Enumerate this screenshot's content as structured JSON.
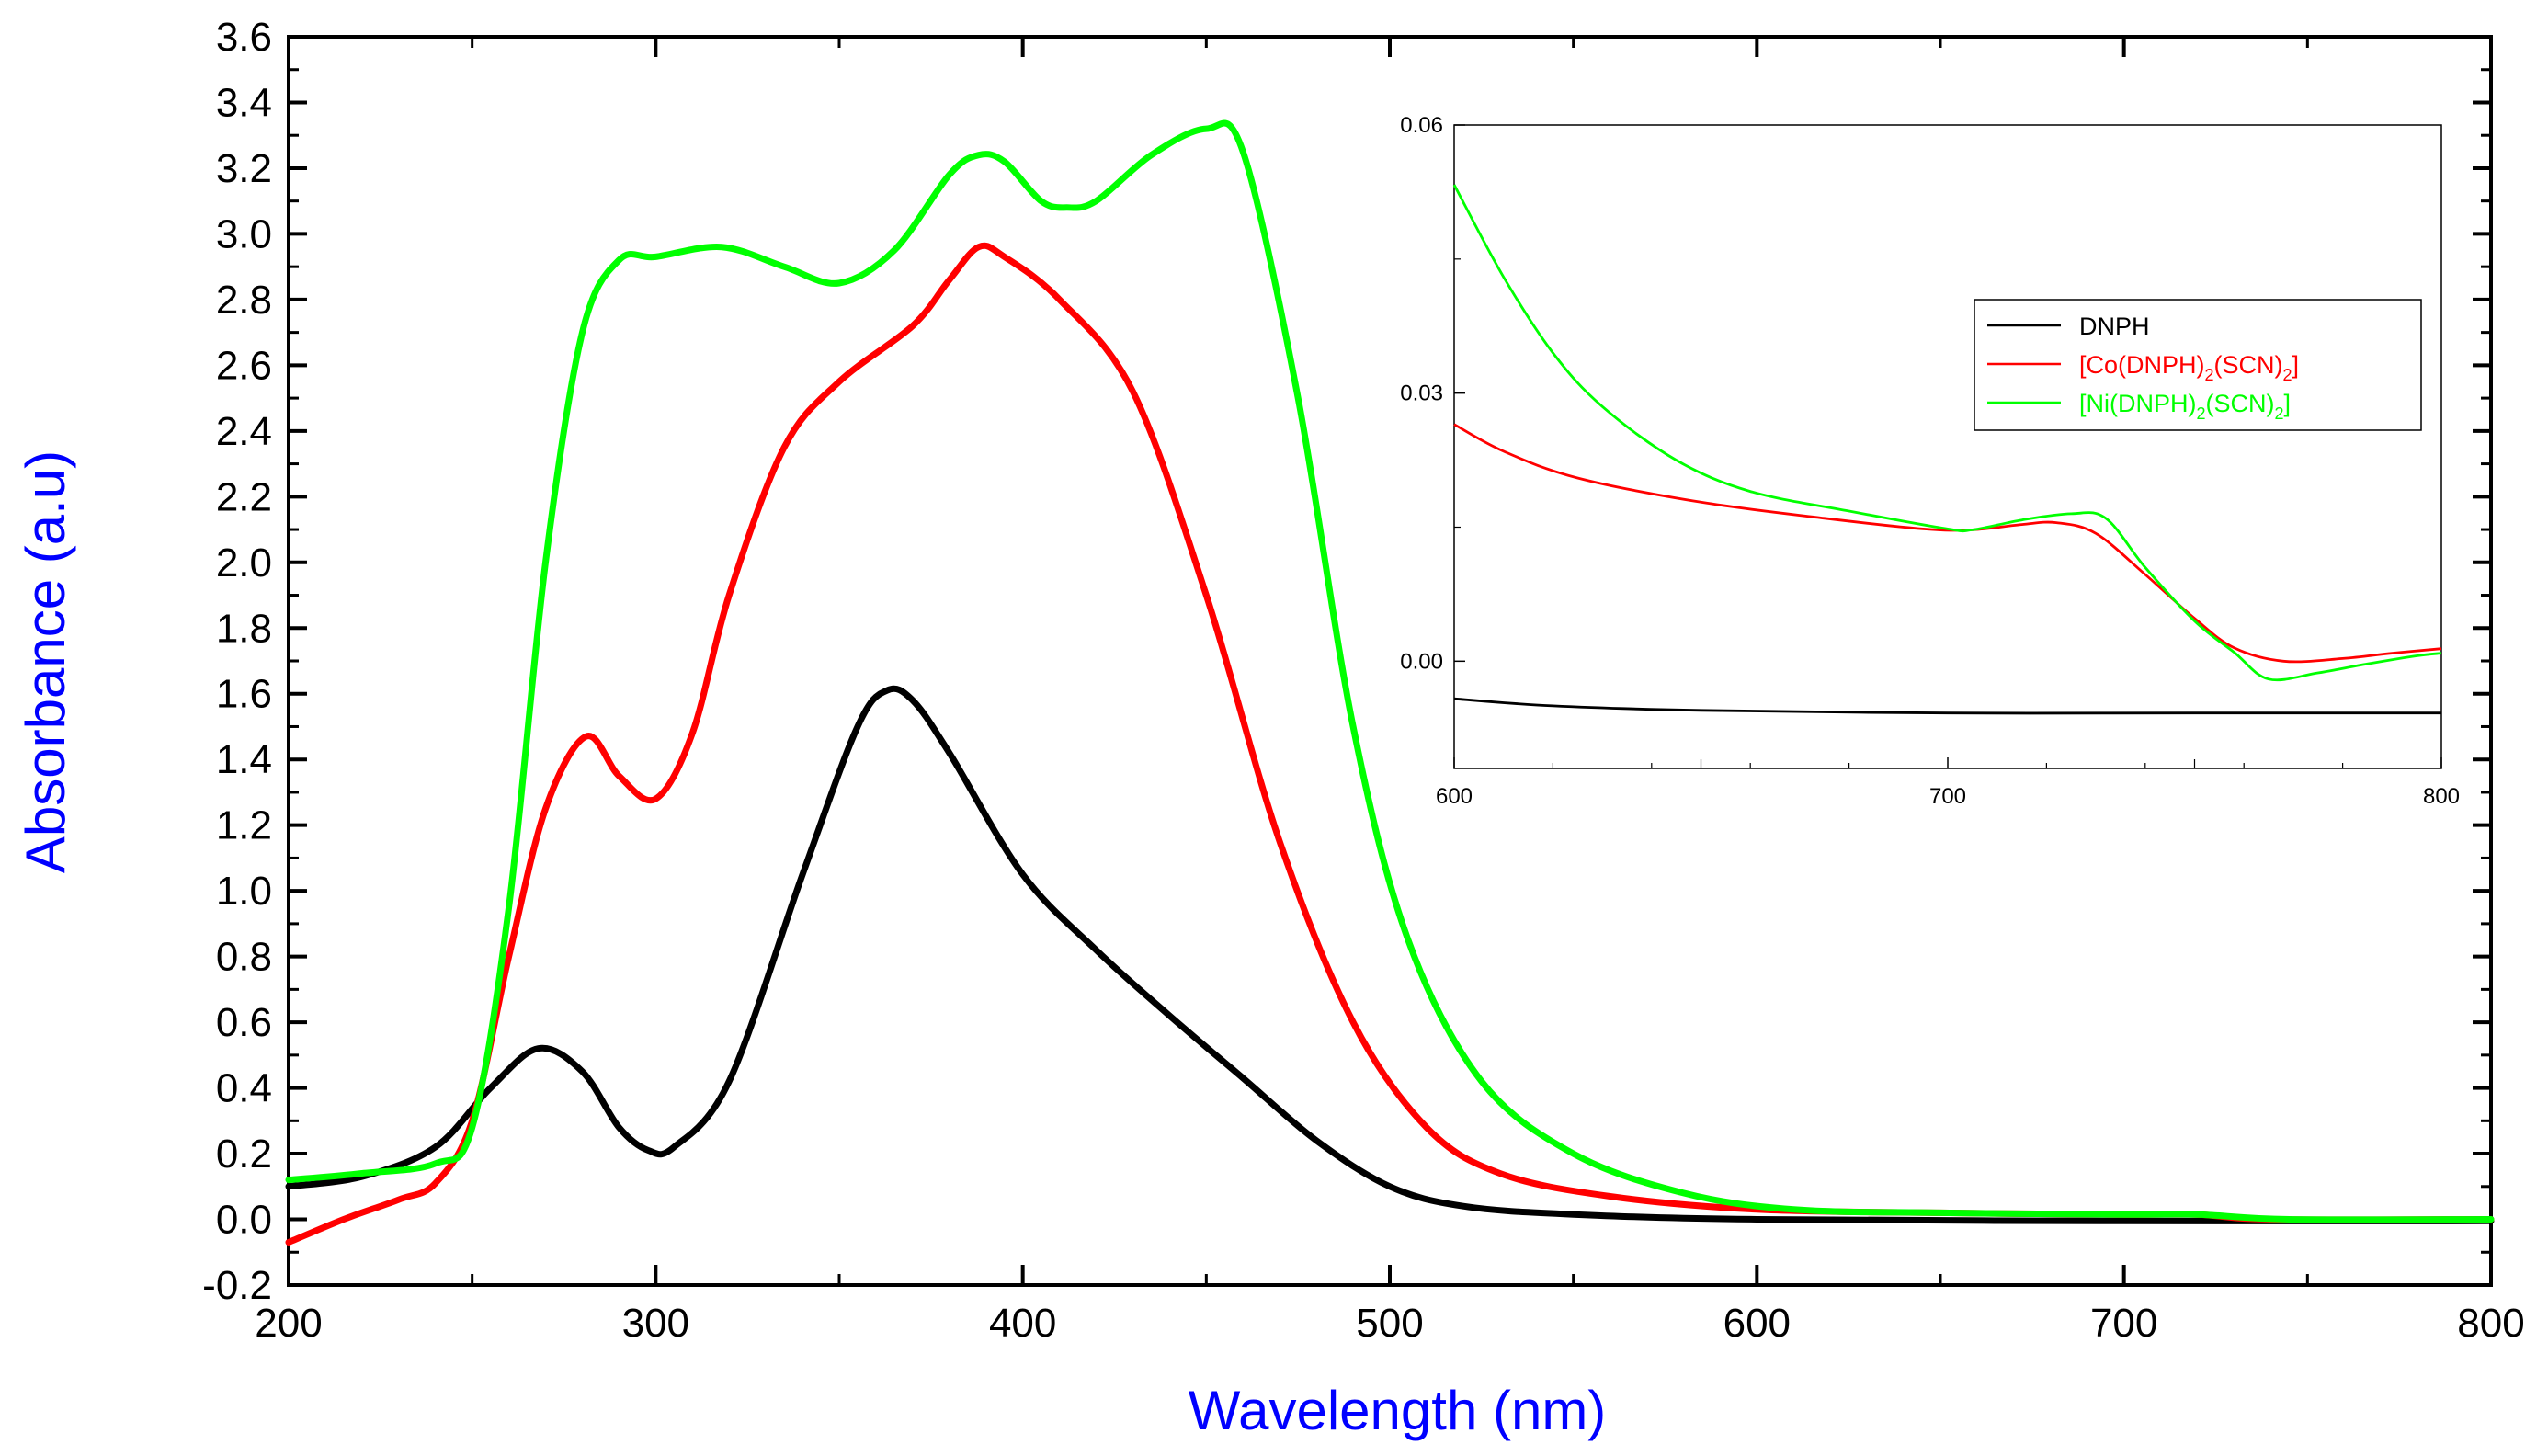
{
  "chart_data": [
    {
      "type": "line",
      "xlabel": "Wavelength (nm)",
      "ylabel": "Absorbance (a.u)",
      "xlim": [
        200,
        800
      ],
      "ylim": [
        -0.2,
        3.6
      ],
      "x_ticks": [
        "200",
        "300",
        "400",
        "500",
        "600",
        "700",
        "800"
      ],
      "y_ticks": [
        "-0.2",
        "0.0",
        "0.2",
        "0.4",
        "0.6",
        "0.8",
        "1.0",
        "1.2",
        "1.4",
        "1.6",
        "1.8",
        "2.0",
        "2.2",
        "2.4",
        "2.6",
        "2.8",
        "3.0",
        "3.2",
        "3.4",
        "3.6"
      ],
      "series": [
        {
          "name": "DNPH",
          "color": "#000000",
          "points": [
            [
              200,
              0.1
            ],
            [
              220,
              0.13
            ],
            [
              240,
              0.22
            ],
            [
              255,
              0.4
            ],
            [
              268,
              0.52
            ],
            [
              280,
              0.45
            ],
            [
              290,
              0.28
            ],
            [
              298,
              0.21
            ],
            [
              305,
              0.22
            ],
            [
              320,
              0.42
            ],
            [
              340,
              1.05
            ],
            [
              355,
              1.5
            ],
            [
              363,
              1.61
            ],
            [
              370,
              1.58
            ],
            [
              380,
              1.42
            ],
            [
              400,
              1.05
            ],
            [
              420,
              0.82
            ],
            [
              440,
              0.62
            ],
            [
              460,
              0.43
            ],
            [
              480,
              0.24
            ],
            [
              500,
              0.1
            ],
            [
              520,
              0.04
            ],
            [
              550,
              0.015
            ],
            [
              600,
              0.0
            ],
            [
              700,
              -0.005
            ],
            [
              800,
              -0.005
            ]
          ]
        },
        {
          "name": "[Co(DNPH)2(SCN)2]",
          "color": "#ff0000",
          "points": [
            [
              200,
              -0.07
            ],
            [
              215,
              0.0
            ],
            [
              230,
              0.06
            ],
            [
              240,
              0.11
            ],
            [
              250,
              0.3
            ],
            [
              260,
              0.8
            ],
            [
              270,
              1.25
            ],
            [
              281,
              1.47
            ],
            [
              290,
              1.35
            ],
            [
              300,
              1.28
            ],
            [
              310,
              1.48
            ],
            [
              320,
              1.9
            ],
            [
              335,
              2.35
            ],
            [
              350,
              2.55
            ],
            [
              370,
              2.72
            ],
            [
              380,
              2.86
            ],
            [
              388,
              2.96
            ],
            [
              395,
              2.93
            ],
            [
              410,
              2.8
            ],
            [
              430,
              2.52
            ],
            [
              450,
              1.9
            ],
            [
              470,
              1.15
            ],
            [
              490,
              0.6
            ],
            [
              510,
              0.28
            ],
            [
              530,
              0.14
            ],
            [
              560,
              0.07
            ],
            [
              600,
              0.03
            ],
            [
              650,
              0.02
            ],
            [
              700,
              0.015
            ],
            [
              720,
              0.015
            ],
            [
              740,
              0.0
            ],
            [
              800,
              0.0
            ]
          ]
        },
        {
          "name": "[Ni(DNPH)2(SCN)2]",
          "color": "#00ff00",
          "points": [
            [
              200,
              0.12
            ],
            [
              220,
              0.14
            ],
            [
              240,
              0.17
            ],
            [
              250,
              0.28
            ],
            [
              260,
              0.95
            ],
            [
              270,
              2.0
            ],
            [
              280,
              2.7
            ],
            [
              290,
              2.92
            ],
            [
              300,
              2.93
            ],
            [
              318,
              2.96
            ],
            [
              335,
              2.9
            ],
            [
              350,
              2.85
            ],
            [
              365,
              2.95
            ],
            [
              380,
              3.18
            ],
            [
              388,
              3.24
            ],
            [
              395,
              3.22
            ],
            [
              405,
              3.1
            ],
            [
              412,
              3.08
            ],
            [
              420,
              3.1
            ],
            [
              435,
              3.24
            ],
            [
              450,
              3.32
            ],
            [
              460,
              3.25
            ],
            [
              475,
              2.5
            ],
            [
              490,
              1.5
            ],
            [
              505,
              0.85
            ],
            [
              525,
              0.42
            ],
            [
              550,
              0.2
            ],
            [
              580,
              0.08
            ],
            [
              610,
              0.03
            ],
            [
              650,
              0.02
            ],
            [
              700,
              0.015
            ],
            [
              720,
              0.015
            ],
            [
              745,
              0.0
            ],
            [
              800,
              0.0
            ]
          ]
        }
      ]
    },
    {
      "type": "line",
      "title": "inset",
      "xlim": [
        600,
        800
      ],
      "ylim": [
        -0.012,
        0.06
      ],
      "x_ticks": [
        "600",
        "700",
        "800"
      ],
      "y_ticks": [
        "0.00",
        "0.03",
        "0.06"
      ],
      "legend_position": "top-right",
      "legend": [
        {
          "name": "DNPH",
          "color": "#000000",
          "parts": [
            {
              "t": "DNPH",
              "sub": false
            }
          ]
        },
        {
          "name": "[Co(DNPH)2(SCN)2]",
          "color": "#ff0000",
          "parts": [
            {
              "t": "[Co(DNPH)",
              "sub": false
            },
            {
              "t": "2",
              "sub": true
            },
            {
              "t": "(SCN)",
              "sub": false
            },
            {
              "t": "2",
              "sub": true
            },
            {
              "t": "]",
              "sub": false
            }
          ]
        },
        {
          "name": "[Ni(DNPH)2(SCN)2]",
          "color": "#00ff00",
          "parts": [
            {
              "t": "[Ni(DNPH)",
              "sub": false
            },
            {
              "t": "2",
              "sub": true
            },
            {
              "t": "(SCN)",
              "sub": false
            },
            {
              "t": "2",
              "sub": true
            },
            {
              "t": "]",
              "sub": false
            }
          ]
        }
      ],
      "series": [
        {
          "name": "DNPH",
          "color": "#000000",
          "points": [
            [
              600,
              -0.0042
            ],
            [
              620,
              -0.005
            ],
            [
              650,
              -0.0055
            ],
            [
              700,
              -0.0058
            ],
            [
              750,
              -0.0058
            ],
            [
              800,
              -0.0058
            ]
          ]
        },
        {
          "name": "[Co(DNPH)2(SCN)2]",
          "color": "#ff0000",
          "points": [
            [
              600,
              0.0265
            ],
            [
              610,
              0.0235
            ],
            [
              625,
              0.0205
            ],
            [
              650,
              0.0178
            ],
            [
              675,
              0.016
            ],
            [
              695,
              0.0148
            ],
            [
              705,
              0.0147
            ],
            [
              715,
              0.0153
            ],
            [
              722,
              0.0155
            ],
            [
              730,
              0.0143
            ],
            [
              740,
              0.0097
            ],
            [
              750,
              0.0048
            ],
            [
              758,
              0.0015
            ],
            [
              768,
              0.0
            ],
            [
              780,
              0.0003
            ],
            [
              790,
              0.0009
            ],
            [
              800,
              0.0014
            ]
          ]
        },
        {
          "name": "[Ni(DNPH)2(SCN)2]",
          "color": "#00ff00",
          "points": [
            [
              600,
              0.0533
            ],
            [
              610,
              0.043
            ],
            [
              620,
              0.0345
            ],
            [
              630,
              0.0285
            ],
            [
              645,
              0.0225
            ],
            [
              660,
              0.019
            ],
            [
              680,
              0.0168
            ],
            [
              700,
              0.0148
            ],
            [
              705,
              0.0147
            ],
            [
              715,
              0.0158
            ],
            [
              725,
              0.0165
            ],
            [
              732,
              0.016
            ],
            [
              740,
              0.0105
            ],
            [
              750,
              0.0045
            ],
            [
              758,
              0.001
            ],
            [
              765,
              -0.002
            ],
            [
              775,
              -0.0013
            ],
            [
              785,
              -0.0003
            ],
            [
              795,
              0.0006
            ],
            [
              800,
              0.0009
            ]
          ]
        }
      ]
    }
  ]
}
